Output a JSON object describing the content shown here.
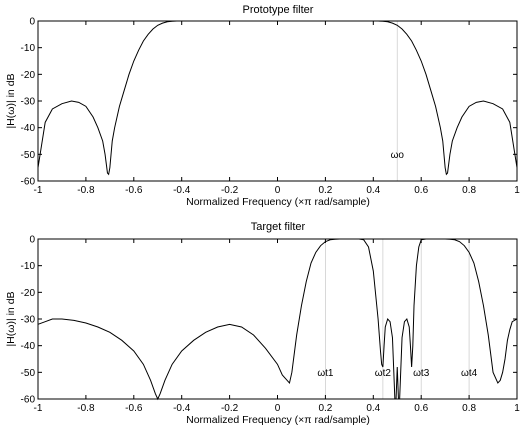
{
  "chart_data": [
    {
      "type": "line",
      "title": "Prototype filter",
      "xlabel": "Normalized Frequency  (×π rad/sample)",
      "ylabel": "|H(ω)| in dB",
      "xlim": [
        -1,
        1
      ],
      "ylim": [
        -60,
        0
      ],
      "xticks": [
        "-1",
        "-0.8",
        "-0.6",
        "-0.4",
        "-0.2",
        "0",
        "0.2",
        "0.4",
        "0.6",
        "0.8",
        "1"
      ],
      "yticks": [
        "0",
        "-10",
        "-20",
        "-30",
        "-40",
        "-50",
        "-60"
      ],
      "markers": [
        {
          "label": "ωo",
          "x": 0.5
        }
      ],
      "series": [
        {
          "x": [
            -1,
            -0.97,
            -0.94,
            -0.9,
            -0.86,
            -0.83,
            -0.8,
            -0.77,
            -0.75,
            -0.73,
            -0.72,
            -0.71,
            -0.705,
            -0.7,
            -0.69,
            -0.68,
            -0.66,
            -0.64,
            -0.62,
            -0.6,
            -0.58,
            -0.56,
            -0.54,
            -0.52,
            -0.5,
            -0.48,
            -0.46,
            -0.44,
            -0.42,
            -0.4,
            0.4,
            0.42,
            0.44,
            0.46,
            0.48,
            0.5,
            0.52,
            0.54,
            0.56,
            0.58,
            0.6,
            0.62,
            0.64,
            0.66,
            0.68,
            0.69,
            0.7,
            0.705,
            0.71,
            0.72,
            0.73,
            0.75,
            0.77,
            0.8,
            0.83,
            0.86,
            0.9,
            0.94,
            0.97,
            1
          ],
          "y": [
            -55,
            -38,
            -33,
            -31,
            -30,
            -30.5,
            -32,
            -36,
            -40,
            -45,
            -50,
            -57,
            -57.5,
            -55,
            -45,
            -40,
            -32,
            -26,
            -20,
            -15,
            -11,
            -7.5,
            -5,
            -3,
            -1.6,
            -0.8,
            -0.3,
            -0.1,
            0,
            0,
            0,
            0,
            -0.1,
            -0.3,
            -0.8,
            -1.6,
            -3,
            -5,
            -7.5,
            -11,
            -15,
            -20,
            -26,
            -32,
            -40,
            -45,
            -55,
            -57.5,
            -57,
            -50,
            -45,
            -40,
            -36,
            -32,
            -30.5,
            -30,
            -31,
            -33,
            -38,
            -55
          ]
        }
      ]
    },
    {
      "type": "line",
      "title": "Target filter",
      "xlabel": "Normalized Frequency  (×π rad/sample)",
      "ylabel": "|H(ω)| in dB",
      "xlim": [
        -1,
        1
      ],
      "ylim": [
        -60,
        0
      ],
      "xticks": [
        "-1",
        "-0.8",
        "-0.6",
        "-0.4",
        "-0.2",
        "0",
        "0.2",
        "0.4",
        "0.6",
        "0.8",
        "1"
      ],
      "yticks": [
        "0",
        "-10",
        "-20",
        "-30",
        "-40",
        "-50",
        "-60"
      ],
      "markers": [
        {
          "label": "ωt1",
          "x": 0.2
        },
        {
          "label": "ωt2",
          "x": 0.44
        },
        {
          "label": "ωt3",
          "x": 0.6
        },
        {
          "label": "ωt4",
          "x": 0.8
        }
      ],
      "series": [
        {
          "x": [
            -1,
            -0.97,
            -0.94,
            -0.9,
            -0.85,
            -0.8,
            -0.75,
            -0.7,
            -0.65,
            -0.6,
            -0.56,
            -0.53,
            -0.51,
            -0.5,
            -0.49,
            -0.47,
            -0.44,
            -0.4,
            -0.35,
            -0.3,
            -0.25,
            -0.2,
            -0.15,
            -0.1,
            -0.05,
            0,
            0.02,
            0.04,
            0.05,
            0.06,
            0.08,
            0.1,
            0.12,
            0.14,
            0.16,
            0.18,
            0.2,
            0.22,
            0.24,
            0.26,
            0.28,
            0.3,
            0.32,
            0.34,
            0.36,
            0.38,
            0.4,
            0.42,
            0.43,
            0.435,
            0.44,
            0.445,
            0.45,
            0.46,
            0.47,
            0.48,
            0.49,
            0.495,
            0.5,
            0.505,
            0.51,
            0.52,
            0.53,
            0.54,
            0.55,
            0.555,
            0.56,
            0.565,
            0.57,
            0.58,
            0.59,
            0.6,
            0.62,
            0.64,
            0.66,
            0.68,
            0.7,
            0.72,
            0.74,
            0.76,
            0.78,
            0.8,
            0.82,
            0.84,
            0.86,
            0.88,
            0.9,
            0.92,
            0.93,
            0.94,
            0.95,
            0.96,
            0.97,
            0.98,
            1
          ],
          "y": [
            -32,
            -31,
            -30,
            -30,
            -30.5,
            -31.5,
            -33,
            -35,
            -38,
            -42,
            -47,
            -53,
            -58,
            -60,
            -58,
            -53,
            -47,
            -42,
            -38,
            -35,
            -33,
            -32,
            -33,
            -36,
            -41,
            -47,
            -51,
            -53,
            -54,
            -50,
            -36,
            -25,
            -16,
            -9,
            -5,
            -2.5,
            -1,
            -0.3,
            -0.1,
            0,
            0,
            0,
            0,
            0,
            -0.3,
            -3,
            -12,
            -30,
            -42,
            -47,
            -48,
            -40,
            -33,
            -30,
            -31,
            -37,
            -60,
            -60,
            -48,
            -60,
            -60,
            -37,
            -31,
            -30,
            -33,
            -40,
            -48,
            -40,
            -25,
            -10,
            -3,
            -0.3,
            0,
            0,
            0,
            0,
            0,
            -0.1,
            -0.3,
            -1,
            -2.5,
            -5,
            -9,
            -16,
            -25,
            -36,
            -50,
            -54,
            -53,
            -50,
            -45,
            -38,
            -34,
            -31,
            -30
          ]
        }
      ]
    }
  ]
}
